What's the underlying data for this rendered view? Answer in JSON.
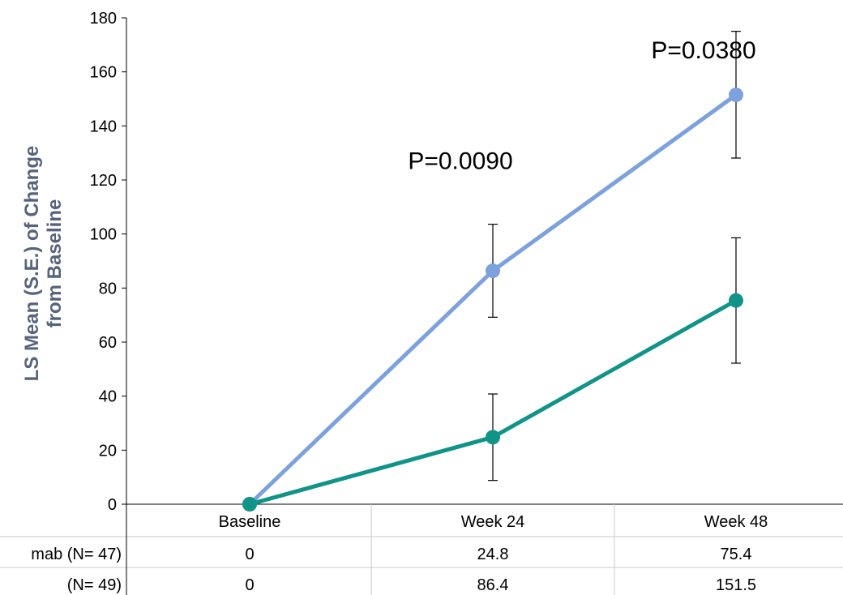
{
  "chart_data": {
    "type": "line",
    "ylabel": "LS Mean (S.E.) of Change from Baseline",
    "ylabel_lines": [
      "LS Mean (S.E.) of Change",
      "from Baseline"
    ],
    "ylim": [
      0,
      180
    ],
    "yticks": [
      0,
      20,
      40,
      60,
      80,
      100,
      120,
      140,
      160,
      180
    ],
    "categories": [
      "Baseline",
      "Week 24",
      "Week 48"
    ],
    "series": [
      {
        "name": "mab (N= 47)",
        "color": "#119488",
        "values": [
          0,
          24.8,
          75.4
        ],
        "se_low": [
          0,
          8.8,
          52.2
        ],
        "se_high": [
          0,
          40.8,
          98.6
        ],
        "table_values": [
          "0",
          "24.8",
          "75.4"
        ]
      },
      {
        "name": "(N= 49)",
        "color": "#7ca1dc",
        "values": [
          0,
          86.4,
          151.5
        ],
        "se_low": [
          0,
          69.2,
          128.1
        ],
        "se_high": [
          0,
          103.6,
          175.0
        ],
        "table_values": [
          "0",
          "86.4",
          "151.5"
        ]
      }
    ],
    "annotations": [
      {
        "text": "P=0.0090",
        "category": "Week 24",
        "y": 127
      },
      {
        "text": "P=0.0380",
        "category": "Week 48",
        "y": 168
      }
    ],
    "grid": false
  }
}
